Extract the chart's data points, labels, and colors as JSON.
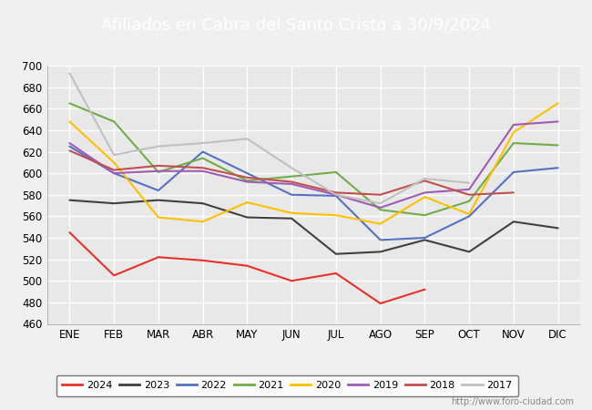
{
  "title": "Afiliados en Cabra del Santo Cristo a 30/9/2024",
  "title_color": "#ffffff",
  "title_bg": "#4472c4",
  "months": [
    "ENE",
    "FEB",
    "MAR",
    "ABR",
    "MAY",
    "JUN",
    "JUL",
    "AGO",
    "SEP",
    "OCT",
    "NOV",
    "DIC"
  ],
  "ylim": [
    460,
    700
  ],
  "yticks": [
    460,
    480,
    500,
    520,
    540,
    560,
    580,
    600,
    620,
    640,
    660,
    680,
    700
  ],
  "series": {
    "2024": {
      "color": "#e8312a",
      "data": [
        545,
        505,
        522,
        519,
        514,
        500,
        507,
        479,
        492,
        null,
        null,
        null
      ]
    },
    "2023": {
      "color": "#404040",
      "data": [
        575,
        572,
        575,
        572,
        559,
        558,
        525,
        527,
        538,
        527,
        555,
        549
      ]
    },
    "2022": {
      "color": "#5472c4",
      "data": [
        625,
        600,
        584,
        620,
        600,
        580,
        579,
        538,
        540,
        560,
        601,
        605
      ]
    },
    "2021": {
      "color": "#70ad47",
      "data": [
        665,
        648,
        601,
        614,
        593,
        597,
        601,
        566,
        561,
        574,
        628,
        626
      ]
    },
    "2020": {
      "color": "#ffc000",
      "data": [
        648,
        610,
        559,
        555,
        573,
        563,
        561,
        553,
        578,
        562,
        638,
        665
      ]
    },
    "2019": {
      "color": "#9e5cb4",
      "data": [
        628,
        600,
        602,
        602,
        592,
        590,
        580,
        568,
        582,
        585,
        645,
        648
      ]
    },
    "2018": {
      "color": "#c0504d",
      "data": [
        621,
        603,
        607,
        605,
        596,
        592,
        582,
        580,
        593,
        580,
        582,
        null
      ]
    },
    "2017": {
      "color": "#c0c0c0",
      "data": [
        693,
        617,
        625,
        628,
        632,
        605,
        580,
        572,
        595,
        591,
        null,
        null
      ]
    }
  },
  "legend_order": [
    "2024",
    "2023",
    "2022",
    "2021",
    "2020",
    "2019",
    "2018",
    "2017"
  ],
  "bg_color": "#f0f0f0",
  "plot_bg": "#e8e8e8",
  "grid_color": "#ffffff",
  "watermark": "http://www.foro-ciudad.com"
}
